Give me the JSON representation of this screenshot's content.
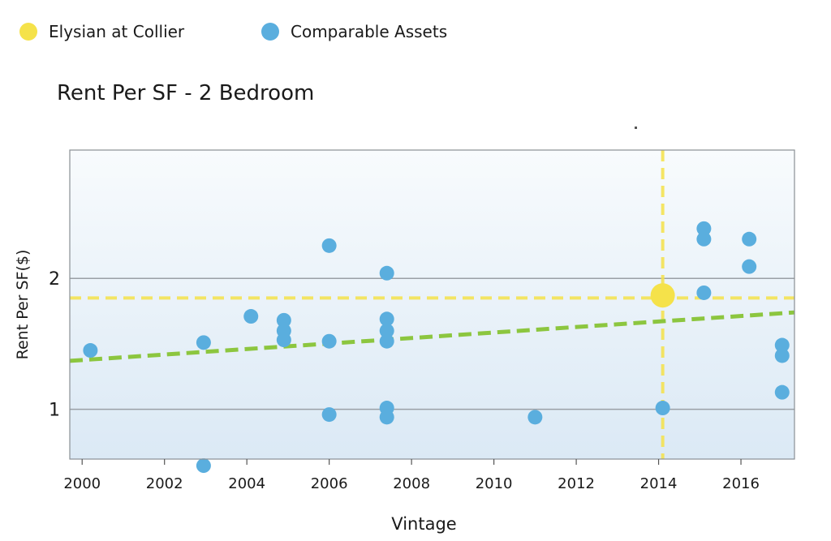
{
  "legend": [
    {
      "label": "Elysian at Collier",
      "color": "#f5e24a"
    },
    {
      "label": "Comparable Assets",
      "color": "#5aaede"
    }
  ],
  "chart_data": {
    "type": "scatter",
    "title": "Rent Per SF - 2 Bedroom",
    "xlabel": "Vintage",
    "ylabel": "Rent Per SF($)",
    "xlim": [
      1999.7,
      2017.3
    ],
    "ylim": [
      0.62,
      2.98
    ],
    "xticks": [
      2000,
      2002,
      2004,
      2006,
      2008,
      2010,
      2012,
      2014,
      2016
    ],
    "yticks": [
      1,
      2
    ],
    "grid": true,
    "legend_position": "top-left",
    "series": [
      {
        "name": "Elysian at Collier",
        "color": "#f5e24a",
        "points": [
          [
            2014.1,
            1.87
          ]
        ]
      },
      {
        "name": "Comparable Assets",
        "color": "#5aaede",
        "points": [
          [
            2000.2,
            1.45
          ],
          [
            2002.95,
            1.51
          ],
          [
            2002.95,
            0.57
          ],
          [
            2004.1,
            1.71
          ],
          [
            2004.9,
            1.68
          ],
          [
            2004.9,
            1.6
          ],
          [
            2004.9,
            1.53
          ],
          [
            2006.0,
            2.25
          ],
          [
            2006.0,
            1.52
          ],
          [
            2006.0,
            0.96
          ],
          [
            2007.4,
            2.04
          ],
          [
            2007.4,
            1.69
          ],
          [
            2007.4,
            1.6
          ],
          [
            2007.4,
            1.52
          ],
          [
            2007.4,
            1.01
          ],
          [
            2007.4,
            0.94
          ],
          [
            2011.0,
            0.94
          ],
          [
            2014.1,
            1.01
          ],
          [
            2015.1,
            2.38
          ],
          [
            2015.1,
            2.3
          ],
          [
            2015.1,
            1.89
          ],
          [
            2016.2,
            2.3
          ],
          [
            2016.2,
            2.09
          ],
          [
            2017.0,
            1.49
          ],
          [
            2017.0,
            1.41
          ],
          [
            2017.0,
            1.13
          ]
        ]
      }
    ],
    "reference_lines": {
      "horizontal": {
        "y": 1.85,
        "color": "#f5e24a",
        "style": "dashed"
      },
      "vertical": {
        "x": 2014.1,
        "color": "#f5e24a",
        "style": "dashed"
      }
    },
    "trendline": {
      "x": [
        1999.7,
        2017.3
      ],
      "y": [
        1.37,
        1.74
      ],
      "color": "#8cc63f",
      "style": "dashed"
    }
  }
}
